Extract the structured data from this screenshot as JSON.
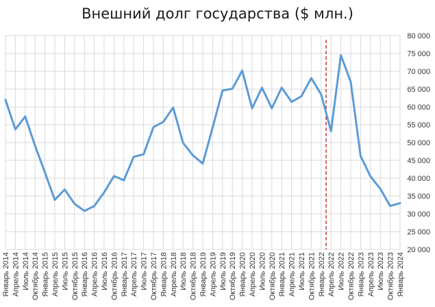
{
  "chart_data": {
    "type": "line",
    "title": "Внешний долг государства ($ млн.)",
    "xlabel": "",
    "ylabel": "",
    "ylim": [
      20000,
      80000
    ],
    "y_ticks": [
      20000,
      25000,
      30000,
      35000,
      40000,
      45000,
      50000,
      55000,
      60000,
      65000,
      70000,
      75000,
      80000
    ],
    "y_tick_labels": [
      "20 000",
      "25 000",
      "30 000",
      "35 000",
      "40 000",
      "45 000",
      "50 000",
      "55 000",
      "60 000",
      "65 000",
      "70 000",
      "75 000",
      "80 000"
    ],
    "y_axis_position": "right",
    "grid": true,
    "legend": null,
    "categories": [
      "Январь 2014",
      "Апрель 2014",
      "Июль 2014",
      "Октябрь 2014",
      "Январь 2015",
      "Апрель 2015",
      "Июль 2015",
      "Октябрь 2015",
      "Январь 2016",
      "Апрель 2016",
      "Июль 2016",
      "Октябрь 2016",
      "Январь 2017",
      "Апрель 2017",
      "Июль 2017",
      "Октябрь 2017",
      "Январь 2018",
      "Апрель 2018",
      "Июль 2018",
      "Октябрь 2018",
      "Январь 2019",
      "Апрель 2019",
      "Июль 2019",
      "Октябрь 2019",
      "Январь 2020",
      "Апрель 2020",
      "Июль 2020",
      "Октябрь 2020",
      "Январь 2021",
      "Апрель 2021",
      "Июль 2021",
      "Октябрь 2021",
      "Январь 2022",
      "Апрель 2022",
      "Июль 2022",
      "Октябрь 2022",
      "Январь 2023",
      "Апрель 2023",
      "Июль 2023",
      "Октябрь 2023",
      "Январь 2024"
    ],
    "series": [
      {
        "name": "Внешний долг",
        "color": "#5b9bd5",
        "values": [
          62000,
          53700,
          57300,
          49100,
          41600,
          33900,
          36800,
          32800,
          30800,
          32200,
          36000,
          40600,
          39400,
          46000,
          46700,
          54300,
          55800,
          59800,
          49900,
          46400,
          44100,
          54200,
          64600,
          65100,
          70200,
          59600,
          65400,
          59600,
          65400,
          61400,
          63000,
          68100,
          63500,
          53200,
          74500,
          67000,
          46200,
          40500,
          37000,
          32200,
          33000
        ]
      }
    ],
    "annotations": [
      {
        "type": "vertical-dashed-line",
        "color": "#c00000",
        "position_between": [
          "Январь 2022",
          "Апрель 2022"
        ]
      }
    ]
  }
}
